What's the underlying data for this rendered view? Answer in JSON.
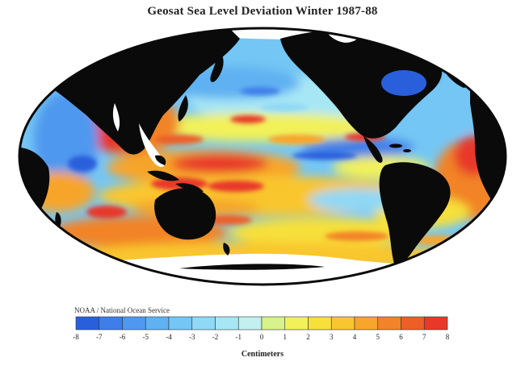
{
  "header": {
    "title": "Geosat Sea Level Deviation Winter 1987-88"
  },
  "legend": {
    "credit": "NOAA / National Ocean Service",
    "units": "Centimeters",
    "ticks": [
      "-8",
      "-7",
      "-6",
      "-5",
      "-4",
      "-3",
      "-2",
      "-1",
      "0",
      "1",
      "2",
      "3",
      "4",
      "5",
      "6",
      "7",
      "8"
    ],
    "colors": [
      "#2a5fdc",
      "#3f7ee8",
      "#4f98ef",
      "#5fb1f2",
      "#74c6f4",
      "#8fd8f6",
      "#a7e7f5",
      "#c2f0f0",
      "#d7f28a",
      "#f2f15a",
      "#f7e03a",
      "#f9c62f",
      "#f7a52b",
      "#f28328",
      "#ed5f26",
      "#e8382a"
    ]
  },
  "map": {
    "projection": "Mollweide (Pacific-centered)",
    "colors": {
      "land": "#0a0a0a",
      "ice": "#ffffff",
      "ocean_base": "#74c6f4",
      "positive_high": "#e8382a",
      "positive_mid": "#f7a52b",
      "positive_low": "#f2f15a",
      "negative_mid": "#4f98ef",
      "negative_high": "#2a5fdc"
    }
  }
}
